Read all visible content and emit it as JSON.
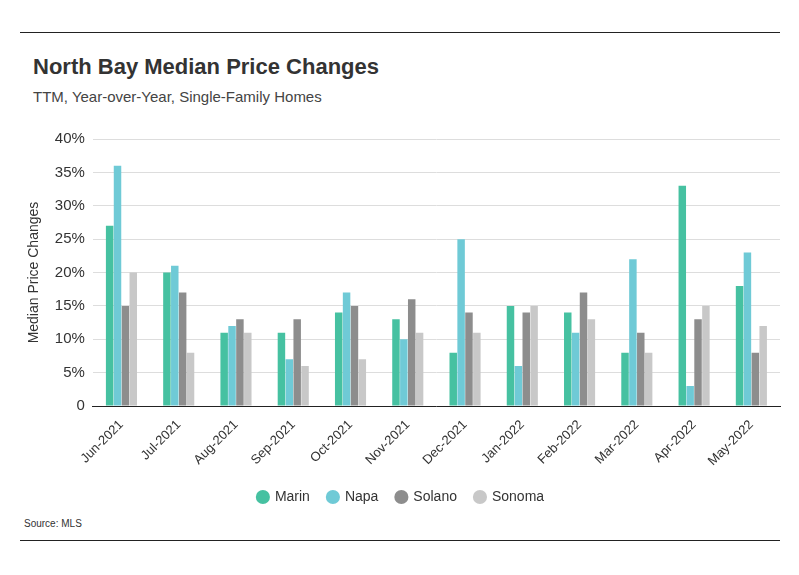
{
  "chart_data": {
    "type": "bar",
    "title": "North Bay Median Price Changes",
    "subtitle": "TTM, Year-over-Year, Single-Family Homes",
    "source": "Source: MLS",
    "y_label": "Median Price Changes",
    "categories": [
      "Jun-2021",
      "Jul-2021",
      "Aug-2021",
      "Sep-2021",
      "Oct-2021",
      "Nov-2021",
      "Dec-2021",
      "Jan-2022",
      "Feb-2022",
      "Mar-2022",
      "Apr-2022",
      "May-2022"
    ],
    "series": [
      {
        "name": "Marin",
        "color": "#46c1a1",
        "values": [
          27,
          20,
          11,
          11,
          14,
          13,
          8,
          15,
          14,
          8,
          33,
          18
        ]
      },
      {
        "name": "Napa",
        "color": "#6fcad6",
        "values": [
          36,
          21,
          12,
          7,
          17,
          10,
          25,
          6,
          11,
          22,
          3,
          23
        ]
      },
      {
        "name": "Solano",
        "color": "#8d8d8d",
        "values": [
          15,
          17,
          13,
          13,
          15,
          16,
          14,
          14,
          17,
          11,
          13,
          8
        ]
      },
      {
        "name": "Sonoma",
        "color": "#c8c8c8",
        "values": [
          20,
          8,
          11,
          6,
          7,
          11,
          11,
          15,
          13,
          8,
          15,
          12
        ]
      }
    ],
    "ylim": [
      0,
      40
    ],
    "yticks": [
      0,
      {
        "value": 5,
        "label": "5%"
      },
      {
        "value": 10,
        "label": "10%"
      },
      {
        "value": 15,
        "label": "15%"
      },
      {
        "value": 20,
        "label": "20%"
      },
      {
        "value": 25,
        "label": "25%"
      },
      {
        "value": 30,
        "label": "30%"
      },
      {
        "value": 35,
        "label": "35%"
      },
      {
        "value": 40,
        "label": "40%"
      }
    ],
    "grid": true,
    "legend": "bottom"
  }
}
